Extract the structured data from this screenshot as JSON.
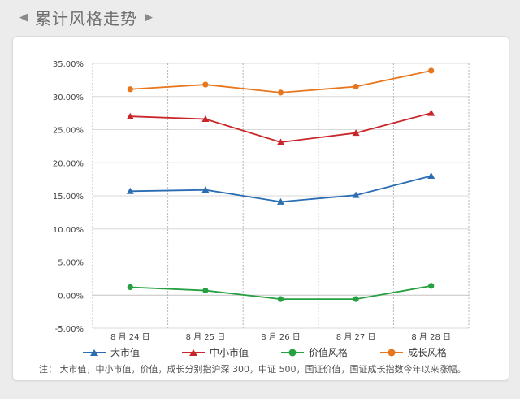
{
  "header": {
    "title": "累计风格走势",
    "left_arrow": "◀",
    "right_arrow": "▶"
  },
  "chart_data": {
    "type": "line",
    "categories": [
      "8 月 24 日",
      "8 月 25 日",
      "8 月 26 日",
      "8 月 27 日",
      "8 月 28 日"
    ],
    "ylim": [
      -5,
      35
    ],
    "yticks": [
      -5,
      0,
      5,
      10,
      15,
      20,
      25,
      30,
      35
    ],
    "ytick_labels": [
      "-5.00%",
      "0.00%",
      "5.00%",
      "10.00%",
      "15.00%",
      "20.00%",
      "25.00%",
      "30.00%",
      "35.00%"
    ],
    "grid": "vertical dashed, horizontal solid",
    "legend_position": "bottom",
    "series": [
      {
        "name": "大市值",
        "color": "#2a6db3",
        "marker": "triangle",
        "values": [
          15.7,
          15.9,
          14.1,
          15.1,
          18.0
        ]
      },
      {
        "name": "中小市值",
        "color": "#c8262a",
        "marker": "triangle",
        "values": [
          27.0,
          26.6,
          23.1,
          24.5,
          27.5
        ]
      },
      {
        "name": "价值风格",
        "color": "#26a041",
        "marker": "circle",
        "values": [
          1.2,
          0.7,
          -0.6,
          -0.6,
          1.4
        ]
      },
      {
        "name": "成长风格",
        "color": "#e8761c",
        "marker": "circle",
        "values": [
          31.1,
          31.8,
          30.6,
          31.5,
          33.9
        ]
      }
    ]
  },
  "note": "注：  大市值，中小市值，价值，成长分别指沪深 300，中证 500，国证价值，国证成长指数今年以来涨幅。"
}
